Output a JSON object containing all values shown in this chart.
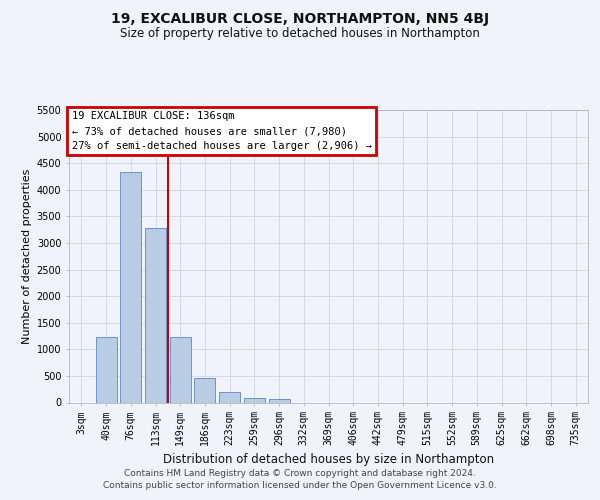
{
  "title": "19, EXCALIBUR CLOSE, NORTHAMPTON, NN5 4BJ",
  "subtitle": "Size of property relative to detached houses in Northampton",
  "xlabel": "Distribution of detached houses by size in Northampton",
  "ylabel": "Number of detached properties",
  "footer_line1": "Contains HM Land Registry data © Crown copyright and database right 2024.",
  "footer_line2": "Contains public sector information licensed under the Open Government Licence v3.0.",
  "annotation_title": "19 EXCALIBUR CLOSE: 136sqm",
  "annotation_line1": "← 73% of detached houses are smaller (7,980)",
  "annotation_line2": "27% of semi-detached houses are larger (2,906) →",
  "bar_color": "#b8cce4",
  "bar_edge_color": "#4472c4",
  "vline_color": "#cc0000",
  "ann_box_edge_color": "#cc0000",
  "categories": [
    "3sqm",
    "40sqm",
    "76sqm",
    "113sqm",
    "149sqm",
    "186sqm",
    "223sqm",
    "259sqm",
    "296sqm",
    "332sqm",
    "369sqm",
    "406sqm",
    "442sqm",
    "479sqm",
    "515sqm",
    "552sqm",
    "589sqm",
    "625sqm",
    "662sqm",
    "698sqm",
    "735sqm"
  ],
  "values": [
    0,
    1230,
    4330,
    3290,
    1240,
    470,
    200,
    90,
    60,
    0,
    0,
    0,
    0,
    0,
    0,
    0,
    0,
    0,
    0,
    0,
    0
  ],
  "ylim": [
    0,
    5500
  ],
  "yticks": [
    0,
    500,
    1000,
    1500,
    2000,
    2500,
    3000,
    3500,
    4000,
    4500,
    5000,
    5500
  ],
  "vline_x": 3.5,
  "background_color": "#f0f4fa",
  "plot_bg_color": "#f0f4fa",
  "grid_color": "#c8d0dc",
  "title_fontsize": 10,
  "subtitle_fontsize": 8.5,
  "ylabel_fontsize": 8,
  "xlabel_fontsize": 8.5,
  "tick_fontsize": 7,
  "ann_fontsize": 7.5,
  "footer_fontsize": 6.5
}
